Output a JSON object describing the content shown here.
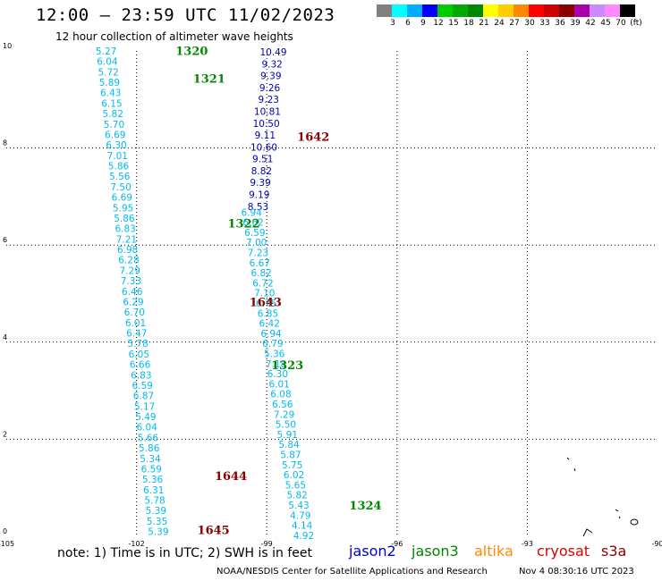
{
  "header": {
    "title": "12:00 – 23:59 UTC 11/02/2023",
    "subtitle": "12 hour collection of altimeter wave heights"
  },
  "legend": {
    "colors": [
      "#808080",
      "#00ffff",
      "#00aaff",
      "#0000ff",
      "#00cc00",
      "#00aa00",
      "#008800",
      "#ffff00",
      "#ffcc00",
      "#ff8800",
      "#ff0000",
      "#cc0000",
      "#880000",
      "#aa00aa",
      "#cc88ff",
      "#ff88ff",
      "#000000"
    ],
    "labels": [
      "3",
      "6",
      "9",
      "12",
      "15",
      "18",
      "21",
      "24",
      "27",
      "30",
      "33",
      "36",
      "39",
      "42",
      "45",
      "70",
      "(ft)"
    ]
  },
  "axes": {
    "x_ticks": [
      "-105",
      "-102",
      "-99",
      "-96",
      "-93",
      "-90"
    ],
    "y_ticks": [
      "0",
      "2",
      "4",
      "6",
      "8",
      "10"
    ]
  },
  "passes": [
    {
      "id": "1320",
      "color": "#008800",
      "lon": -101.1,
      "lat": 9.99
    },
    {
      "id": "1321",
      "color": "#008800",
      "lon": -100.7,
      "lat": 9.42
    },
    {
      "id": "1642",
      "color": "#880000",
      "lon": -98.3,
      "lat": 8.22
    },
    {
      "id": "1322",
      "color": "#008800",
      "lon": -99.9,
      "lat": 6.44
    },
    {
      "id": "1643",
      "color": "#880000",
      "lon": -99.4,
      "lat": 4.82
    },
    {
      "id": "1323",
      "color": "#008800",
      "lon": -98.9,
      "lat": 3.52
    },
    {
      "id": "1644",
      "color": "#880000",
      "lon": -100.2,
      "lat": 1.23
    },
    {
      "id": "1324",
      "color": "#008800",
      "lon": -97.1,
      "lat": 0.63
    },
    {
      "id": "1645",
      "color": "#880000",
      "lon": -100.6,
      "lat": 0.12
    }
  ],
  "tracks": [
    {
      "name": "track-1320-1321",
      "color": "#00bbee",
      "lon_start": -102.7,
      "lat_start": 10.0,
      "lon_end": -101.5,
      "lat_end": 0.1,
      "values": [
        "5.27",
        "6.04",
        "5.72",
        "5.89",
        "6.43",
        "6.15",
        "5.82",
        "5.70",
        "6.69",
        "6.30",
        "7.01",
        "5.86",
        "5.56",
        "7.50",
        "6.69",
        "5.95",
        "5.86",
        "6.83",
        "7.21",
        "6.98",
        "6.28",
        "7.29",
        "7.33",
        "6.46",
        "6.29",
        "6.70",
        "6.01",
        "6.47",
        "5.78",
        "6.05",
        "6.66",
        "6.83",
        "6.59",
        "6.87",
        "5.17",
        "5.49",
        "6.04",
        "5.66",
        "5.86",
        "5.34",
        "6.59",
        "5.36",
        "6.31",
        "5.78",
        "5.39",
        "5.35",
        "5.39"
      ]
    },
    {
      "name": "track-1642",
      "color": "#0000bb",
      "lon_start": -98.85,
      "lat_start": 9.98,
      "lon_end": -99.2,
      "lat_end": 6.8,
      "values": [
        "10.49",
        "9.32",
        "9.39",
        "9.26",
        "9.23",
        "10.81",
        "10.50",
        "9.11",
        "10.60",
        "9.51",
        "8.82",
        "9.39",
        "9.19",
        "8.53"
      ]
    },
    {
      "name": "track-1322-1324",
      "color": "#00bbee",
      "lon_start": -99.35,
      "lat_start": 6.68,
      "lon_end": -98.15,
      "lat_end": 0.02,
      "values": [
        "6.94",
        "6.62",
        "6.59",
        "7.00",
        "7.23",
        "6.67",
        "6.82",
        "6.72",
        "7.10",
        "6.75",
        "6.85",
        "6.42",
        "6.94",
        "6.79",
        "5.36",
        "7.18",
        "6.30",
        "6.01",
        "6.08",
        "6.56",
        "7.29",
        "5.50",
        "5.91",
        "5.84",
        "5.87",
        "5.75",
        "6.02",
        "5.65",
        "5.82",
        "5.43",
        "4.79",
        "4.14",
        "4.92"
      ]
    }
  ],
  "footer": {
    "note": "note:  1) Time is in UTC;  2) SWH is in feet",
    "satellites": [
      {
        "name": "jason2",
        "color": "#0000cc"
      },
      {
        "name": "jason3",
        "color": "#008800"
      },
      {
        "name": "altika",
        "color": "#ff8800"
      },
      {
        "name": "cryosat",
        "color": "#dd0000"
      },
      {
        "name": "s3a",
        "color": "#880000"
      }
    ],
    "credit": "NOAA/NESDIS Center for Satellite Applications and Research",
    "timestamp": "Nov  4 08:30:16 UTC 2023"
  }
}
